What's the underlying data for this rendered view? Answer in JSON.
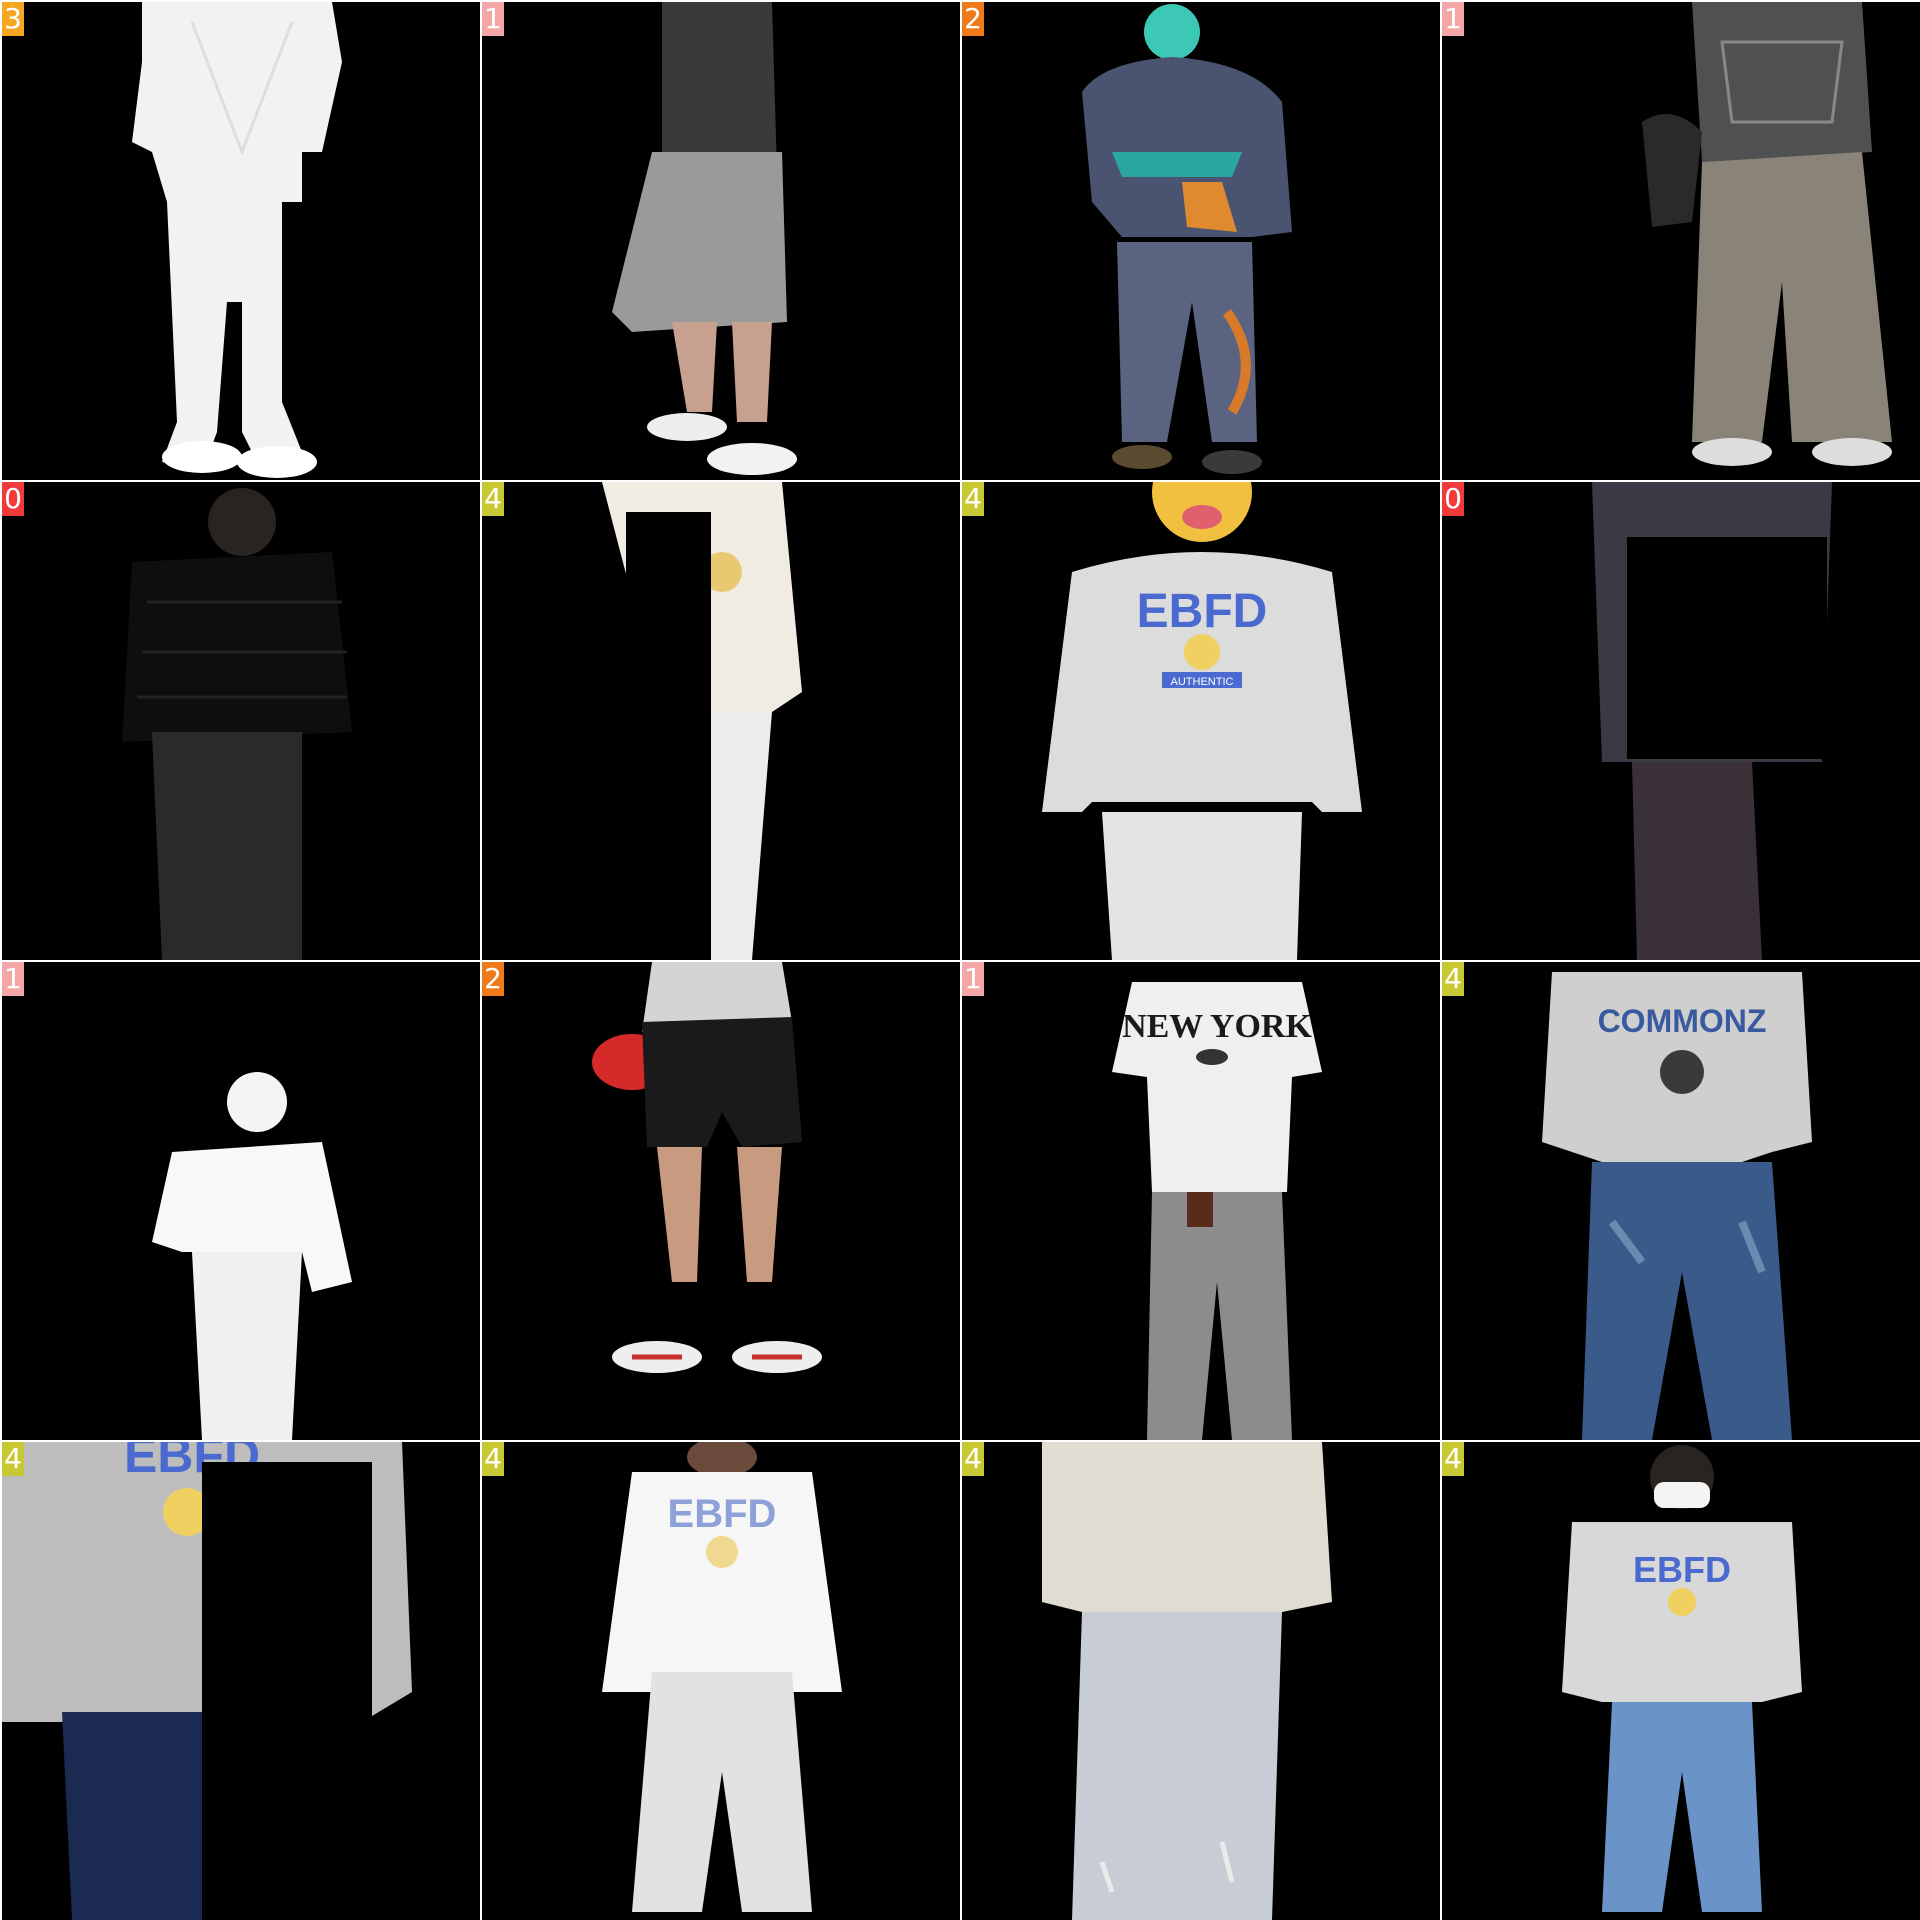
{
  "grid": {
    "rows": 4,
    "cols": 4,
    "tiles": [
      {
        "label": "3",
        "label_color": "#f5a623",
        "scene": "white-suit-figure",
        "icon": "person-white-suit"
      },
      {
        "label": "1",
        "label_color": "#f4a6a6",
        "scene": "grey-shorts-figure",
        "icon": "person-grey-shorts"
      },
      {
        "label": "2",
        "label_color": "#f07a1a",
        "scene": "navy-hoodie-figure",
        "icon": "person-navy-hoodie"
      },
      {
        "label": "1",
        "label_color": "#f4a6a6",
        "scene": "graphic-tee-wide-trousers",
        "icon": "person-graphic-tee"
      },
      {
        "label": "0",
        "label_color": "#f23a3a",
        "scene": "black-puffer-figure",
        "icon": "person-black-puffer"
      },
      {
        "label": "4",
        "label_color": "#c8c832",
        "scene": "cream-sweatshirt-partial",
        "icon": "person-cream-sweatshirt"
      },
      {
        "label": "4",
        "label_color": "#c8c832",
        "scene": "grey-ebfd-sweatshirt",
        "icon": "person-ebfd-sweatshirt"
      },
      {
        "label": "0",
        "label_color": "#f23a3a",
        "scene": "dark-coat-partial",
        "icon": "person-dark-coat"
      },
      {
        "label": "1",
        "label_color": "#f4a6a6",
        "scene": "white-shirt-figure",
        "icon": "person-white-shirt"
      },
      {
        "label": "2",
        "label_color": "#f07a1a",
        "scene": "black-shorts-sneakers",
        "icon": "person-black-shorts"
      },
      {
        "label": "1",
        "label_color": "#f4a6a6",
        "scene": "new-york-tee-figure",
        "icon": "person-new-york-tee"
      },
      {
        "label": "4",
        "label_color": "#c8c832",
        "scene": "commonz-sweatshirt-figure",
        "icon": "person-commonz-sweatshirt"
      },
      {
        "label": "4",
        "label_color": "#c8c832",
        "scene": "ebfd-sweatshirt-closeup",
        "icon": "person-ebfd-closeup"
      },
      {
        "label": "4",
        "label_color": "#c8c832",
        "scene": "white-ebfd-sweatshirt",
        "icon": "person-white-ebfd"
      },
      {
        "label": "4",
        "label_color": "#c8c832",
        "scene": "beige-sweatshirt-jeans",
        "icon": "person-beige-sweatshirt"
      },
      {
        "label": "4",
        "label_color": "#c8c832",
        "scene": "masked-ebfd-figure",
        "icon": "person-masked-ebfd"
      }
    ]
  },
  "logos": {
    "ebfd": "EBFD",
    "authentic": "AUTHENTIC",
    "new_york": "NEW YORK",
    "commonz": "COMMONZ"
  }
}
